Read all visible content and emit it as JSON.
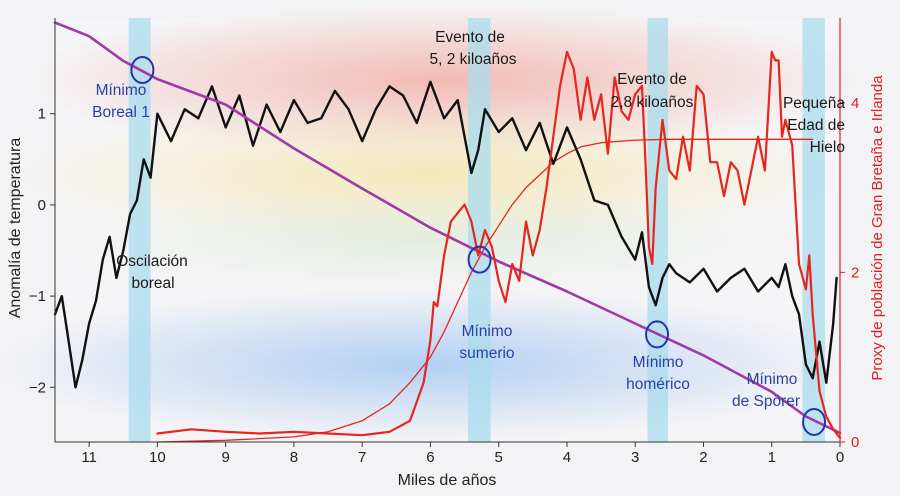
{
  "chart_data": {
    "type": "line",
    "xlabel": "Miles de años",
    "ylabel": "Anomalía de temperatura",
    "y2label": "Proxy de población de Gran Bretaña e Irlanda",
    "xlim": [
      11.5,
      0
    ],
    "ylim": [
      -2.6,
      2.05
    ],
    "y2lim": [
      0,
      5
    ],
    "x_ticks": [
      "11",
      "10",
      "9",
      "8",
      "7",
      "6",
      "5",
      "4",
      "3",
      "2",
      "1",
      "0"
    ],
    "y_ticks": [
      "1",
      "0",
      "−1",
      "−2"
    ],
    "y2_ticks": [
      "4",
      "2",
      "0"
    ],
    "highlight_bands": [
      {
        "from": 10.42,
        "to": 10.1
      },
      {
        "from": 5.45,
        "to": 5.12
      },
      {
        "from": 2.82,
        "to": 2.52
      },
      {
        "from": 0.55,
        "to": 0.22
      }
    ],
    "annotations": {
      "event_5_2_l1": "Evento de",
      "event_5_2_l2": "5, 2 kiloaños",
      "event_2_8_l1": "Evento de",
      "event_2_8_l2": "2,8 kiloaños",
      "lia_l1": "Pequeña",
      "lia_l2": "Edad de",
      "lia_l3": "Hielo",
      "osc_l1": "Oscilación",
      "osc_l2": "boreal",
      "min_boreal_l1": "Mínimo",
      "min_boreal_l2": "Boreal 1",
      "min_sumerio_l1": "Mínimo",
      "min_sumerio_l2": "sumerio",
      "min_homerico_l1": "Mínimo",
      "min_homerico_l2": "homérico",
      "min_sporer_l1": "Mínimo",
      "min_sporer_l2": "de Spörer"
    },
    "minima_markers": [
      {
        "x": 10.22,
        "y": 1.48
      },
      {
        "x": 5.28,
        "y": -0.6
      },
      {
        "x": 2.68,
        "y": -1.42
      },
      {
        "x": 0.38,
        "y": -2.38
      }
    ],
    "series": [
      {
        "role": "temperature_anomaly",
        "axis": "left",
        "color": "#111111",
        "x": [
          11.5,
          11.4,
          11.3,
          11.2,
          11.1,
          11.0,
          10.9,
          10.8,
          10.7,
          10.6,
          10.5,
          10.4,
          10.3,
          10.2,
          10.1,
          10.0,
          9.8,
          9.6,
          9.4,
          9.2,
          9.0,
          8.8,
          8.6,
          8.4,
          8.2,
          8.0,
          7.8,
          7.6,
          7.4,
          7.2,
          7.0,
          6.8,
          6.6,
          6.4,
          6.2,
          6.0,
          5.8,
          5.6,
          5.4,
          5.3,
          5.2,
          5.0,
          4.8,
          4.6,
          4.4,
          4.2,
          4.0,
          3.8,
          3.6,
          3.4,
          3.2,
          3.0,
          2.9,
          2.8,
          2.7,
          2.6,
          2.5,
          2.4,
          2.2,
          2.0,
          1.8,
          1.6,
          1.4,
          1.2,
          1.0,
          0.9,
          0.8,
          0.7,
          0.6,
          0.5,
          0.4,
          0.3,
          0.2,
          0.1,
          0.05
        ],
        "y": [
          -1.2,
          -1.0,
          -1.5,
          -2.0,
          -1.7,
          -1.3,
          -1.05,
          -0.6,
          -0.35,
          -0.8,
          -0.5,
          -0.1,
          0.05,
          0.5,
          0.3,
          1.0,
          0.7,
          1.05,
          0.95,
          1.3,
          0.85,
          1.2,
          0.65,
          1.1,
          0.8,
          1.15,
          0.9,
          0.95,
          1.25,
          1.05,
          0.7,
          1.05,
          1.3,
          1.2,
          0.9,
          1.35,
          0.95,
          1.15,
          0.35,
          0.6,
          1.05,
          0.8,
          0.95,
          0.6,
          0.9,
          0.45,
          0.85,
          0.5,
          0.05,
          0.0,
          -0.35,
          -0.6,
          -0.3,
          -0.9,
          -1.1,
          -0.8,
          -0.65,
          -0.75,
          -0.85,
          -0.7,
          -0.95,
          -0.8,
          -0.7,
          -0.95,
          -0.8,
          -0.9,
          -0.65,
          -1.0,
          -1.2,
          -1.75,
          -1.9,
          -1.5,
          -1.95,
          -1.3,
          -0.8
        ]
      },
      {
        "role": "trend",
        "axis": "left",
        "color": "#a03aa8",
        "x": [
          11.5,
          11.0,
          10.5,
          10.0,
          9.0,
          8.0,
          7.0,
          6.0,
          5.0,
          4.0,
          3.0,
          2.0,
          1.0,
          0.5,
          0.0
        ],
        "y": [
          2.0,
          1.85,
          1.58,
          1.38,
          1.1,
          0.62,
          0.18,
          -0.25,
          -0.62,
          -0.95,
          -1.3,
          -1.65,
          -2.05,
          -2.32,
          -2.5
        ]
      },
      {
        "role": "population_proxy",
        "axis": "right",
        "color": "#e5261e",
        "x": [
          10.0,
          9.5,
          9.0,
          8.5,
          8.0,
          7.5,
          7.0,
          6.6,
          6.3,
          6.1,
          6.0,
          5.95,
          5.9,
          5.8,
          5.7,
          5.6,
          5.5,
          5.4,
          5.3,
          5.2,
          5.1,
          5.0,
          4.9,
          4.8,
          4.7,
          4.6,
          4.5,
          4.4,
          4.3,
          4.2,
          4.1,
          4.0,
          3.9,
          3.8,
          3.7,
          3.6,
          3.5,
          3.4,
          3.3,
          3.2,
          3.1,
          3.0,
          2.9,
          2.85,
          2.8,
          2.75,
          2.7,
          2.6,
          2.5,
          2.4,
          2.3,
          2.2,
          2.1,
          2.0,
          1.9,
          1.8,
          1.7,
          1.6,
          1.5,
          1.4,
          1.3,
          1.2,
          1.1,
          1.0,
          0.95,
          0.9,
          0.85,
          0.8,
          0.7,
          0.6,
          0.5,
          0.45,
          0.4,
          0.3,
          0.2,
          0.1,
          0.0
        ],
        "y": [
          0.1,
          0.15,
          0.12,
          0.1,
          0.12,
          0.1,
          0.08,
          0.12,
          0.25,
          0.7,
          1.2,
          1.65,
          1.6,
          2.2,
          2.6,
          2.7,
          2.8,
          2.6,
          2.2,
          2.5,
          2.3,
          1.9,
          1.65,
          2.1,
          1.9,
          2.6,
          2.2,
          2.5,
          3.0,
          3.6,
          4.2,
          4.6,
          4.4,
          3.8,
          4.3,
          3.8,
          4.1,
          3.4,
          4.3,
          3.9,
          3.8,
          4.1,
          4.2,
          3.3,
          2.3,
          2.1,
          3.0,
          3.8,
          3.2,
          3.1,
          3.6,
          3.2,
          4.2,
          4.1,
          3.3,
          3.3,
          2.9,
          3.3,
          3.2,
          2.8,
          3.2,
          3.6,
          3.2,
          4.6,
          4.5,
          4.5,
          3.6,
          3.8,
          3.5,
          2.1,
          1.8,
          2.2,
          1.5,
          0.6,
          0.3,
          0.15,
          0.05
        ]
      },
      {
        "role": "population_logistic_fit",
        "axis": "right",
        "color": "#e5261e",
        "x": [
          10.0,
          9.0,
          8.0,
          7.5,
          7.0,
          6.6,
          6.3,
          6.0,
          5.8,
          5.6,
          5.4,
          5.2,
          5.0,
          4.8,
          4.6,
          4.4,
          4.2,
          4.0,
          3.8,
          3.5,
          3.0,
          2.5,
          2.0,
          1.0,
          0.4
        ],
        "y": [
          0.0,
          0.02,
          0.06,
          0.12,
          0.25,
          0.45,
          0.7,
          1.0,
          1.3,
          1.65,
          2.0,
          2.3,
          2.55,
          2.8,
          3.0,
          3.15,
          3.3,
          3.4,
          3.48,
          3.53,
          3.56,
          3.57,
          3.57,
          3.57,
          3.57
        ]
      }
    ]
  }
}
